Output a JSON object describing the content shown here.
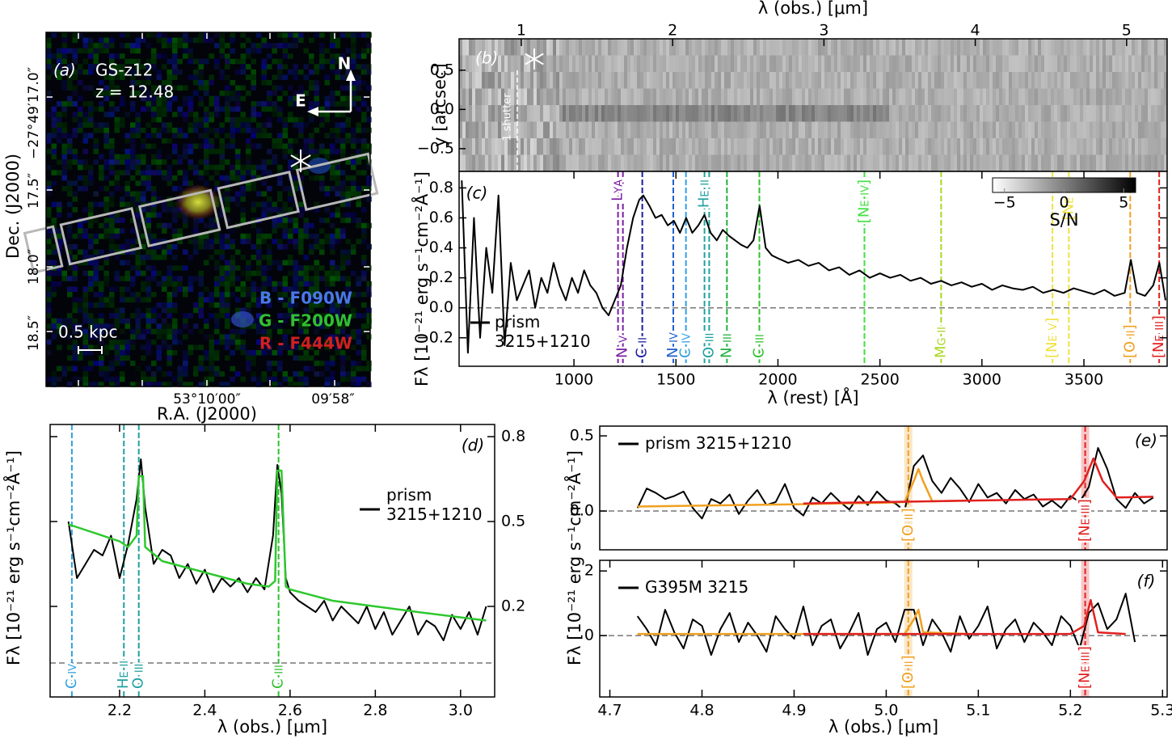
{
  "panel_a": {
    "label": "(a)",
    "name": "GS-z12",
    "redshift": "z = 12.48",
    "compass": [
      "N",
      "E"
    ],
    "filters": [
      "B - F090W",
      "G - F200W",
      "R - F444W"
    ],
    "scale": "0.5 kpc",
    "yticklabels": [
      "−27°49′17.0″",
      "17.5″",
      "18.0″",
      "18.5″"
    ],
    "xticklabels": [
      "53°10′00″",
      "09′58″"
    ],
    "ylabel": "Dec. (J2000)",
    "xlabel": "R.A. (J2000)"
  },
  "panel_b": {
    "label": "(b)",
    "ylabel": "y [arcsec]",
    "ylim": [
      -0.79,
      0.9
    ],
    "yticks": [
      0.5,
      {
        "value": 0,
        "label": "0.0"
      },
      {
        "value": -0.5,
        "label": "−0.5"
      }
    ],
    "shutter_label": "1 shutter",
    "colorbar": {
      "label": "S/N",
      "lim": [
        -6,
        6
      ],
      "ticks": [
        {
          "value": -5,
          "label": "−5"
        },
        0,
        5
      ]
    }
  },
  "chart_data": [
    {
      "type": "line",
      "label": "(c)",
      "xlabel": "λ (rest) [Å]",
      "ylabel": "Fλ [10⁻²¹ erg s⁻¹cm⁻²Å⁻¹]",
      "x2label": "λ (obs.) [μm]",
      "x2lim": [
        0.589,
        5.268
      ],
      "x2ticks": [
        1,
        2,
        3,
        4,
        5
      ],
      "xlim": [
        437,
        3908
      ],
      "xticks": [
        1000,
        1500,
        2000,
        2500,
        3000,
        3500
      ],
      "ylim": [
        -0.39,
        0.91
      ],
      "yticks": [
        {
          "value": -0.2,
          "label": "−0.2"
        },
        {
          "value": 0,
          "label": "0.0"
        },
        0.2,
        0.4,
        0.6,
        0.8
      ],
      "series": [
        {
          "name": "prism 3215+1210",
          "color": "#000000",
          "x": [
            450,
            480,
            510,
            540,
            570,
            600,
            630,
            660,
            690,
            720,
            750,
            780,
            810,
            840,
            870,
            900,
            930,
            960,
            990,
            1020,
            1050,
            1080,
            1110,
            1140,
            1170,
            1200,
            1230,
            1260,
            1290,
            1320,
            1340,
            1370,
            1400,
            1430,
            1460,
            1490,
            1520,
            1550,
            1580,
            1610,
            1640,
            1670,
            1700,
            1730,
            1760,
            1790,
            1820,
            1850,
            1880,
            1910,
            1940,
            1970,
            2000,
            2050,
            2100,
            2150,
            2200,
            2250,
            2300,
            2350,
            2400,
            2450,
            2500,
            2550,
            2600,
            2650,
            2700,
            2750,
            2800,
            2850,
            2900,
            2950,
            3000,
            3050,
            3100,
            3150,
            3200,
            3250,
            3300,
            3350,
            3400,
            3450,
            3500,
            3550,
            3600,
            3650,
            3700,
            3730,
            3760,
            3800,
            3840,
            3870,
            3900
          ],
          "values": [
            0.85,
            -0.3,
            0.6,
            -0.2,
            0.4,
            0.1,
            0.75,
            -0.25,
            0.3,
            0.05,
            0.15,
            0.25,
            0.0,
            0.2,
            0.1,
            0.3,
            0.15,
            0.05,
            0.2,
            0.1,
            0.25,
            0.15,
            0.1,
            0.0,
            -0.05,
            0.05,
            0.15,
            0.4,
            0.6,
            0.72,
            0.75,
            0.68,
            0.6,
            0.62,
            0.55,
            0.58,
            0.5,
            0.6,
            0.5,
            0.55,
            0.62,
            0.5,
            0.45,
            0.52,
            0.48,
            0.45,
            0.42,
            0.4,
            0.45,
            0.68,
            0.4,
            0.35,
            0.33,
            0.3,
            0.32,
            0.28,
            0.3,
            0.25,
            0.27,
            0.22,
            0.25,
            0.2,
            0.23,
            0.2,
            0.22,
            0.18,
            0.2,
            0.16,
            0.18,
            0.15,
            0.17,
            0.14,
            0.16,
            0.12,
            0.15,
            0.13,
            0.12,
            0.14,
            0.1,
            0.12,
            0.1,
            0.13,
            0.11,
            0.09,
            0.12,
            0.08,
            0.1,
            0.32,
            0.1,
            0.08,
            0.15,
            0.3,
            0.05
          ]
        }
      ],
      "lines": [
        {
          "label": "Lyα",
          "x": 1216,
          "color": "#7a1fa2",
          "label_at": "top"
        },
        {
          "label": "N v",
          "x": 1240,
          "color": "#7a1fa2",
          "label_at": "bottom"
        },
        {
          "label": "C ii",
          "x": 1335,
          "color": "#1a1aa0",
          "label_at": "bottom"
        },
        {
          "label": "N iv",
          "x": 1487,
          "color": "#2060d0",
          "label_at": "bottom"
        },
        {
          "label": "C iv",
          "x": 1549,
          "color": "#30a0e0",
          "label_at": "bottom"
        },
        {
          "label": "He ii",
          "x": 1640,
          "color": "#20a0a0",
          "label_at": "top"
        },
        {
          "label": "O iii",
          "x": 1663,
          "color": "#20a0a0",
          "label_at": "bottom"
        },
        {
          "label": "N iii",
          "x": 1750,
          "color": "#20b040",
          "label_at": "bottom"
        },
        {
          "label": "C iii",
          "x": 1909,
          "color": "#30c030",
          "label_at": "bottom"
        },
        {
          "label": "[Ne iv]",
          "x": 2424,
          "color": "#40e040",
          "label_at": "top"
        },
        {
          "label": "Mg ii",
          "x": 2800,
          "color": "#a8d820",
          "label_at": "bottom"
        },
        {
          "label": "[Ne v]",
          "x": 3346,
          "color": "#f0e040",
          "label_at": "bottom"
        },
        {
          "label": "[Ne v]",
          "x": 3426,
          "color": "#f0e040",
          "label_at": "top"
        },
        {
          "label": "[O ii]",
          "x": 3727,
          "color": "#f0a020",
          "label_at": "bottom"
        },
        {
          "label": "[Ne iii]",
          "x": 3869,
          "color": "#e02020",
          "label_at": "bottom"
        }
      ]
    },
    {
      "type": "line",
      "label": "(d)",
      "xlabel": "λ (obs.) [μm]",
      "ylabel": "Fλ [10⁻²¹ erg s⁻¹cm⁻²Å⁻¹]",
      "xlim": [
        2.037,
        3.08
      ],
      "xticks": [
        2.2,
        2.4,
        2.6,
        2.8,
        {
          "value": 3,
          "label": "3.0"
        }
      ],
      "ylim": [
        -0.12,
        0.843
      ],
      "yticks": [
        0.2,
        0.5,
        0.8
      ],
      "series": [
        {
          "name": "prism 3215+1210",
          "color": "#000000",
          "x": [
            2.08,
            2.1,
            2.12,
            2.14,
            2.16,
            2.18,
            2.2,
            2.22,
            2.24,
            2.25,
            2.26,
            2.28,
            2.3,
            2.32,
            2.34,
            2.36,
            2.38,
            2.4,
            2.42,
            2.44,
            2.46,
            2.48,
            2.5,
            2.52,
            2.54,
            2.56,
            2.57,
            2.58,
            2.59,
            2.6,
            2.62,
            2.64,
            2.66,
            2.68,
            2.7,
            2.72,
            2.74,
            2.76,
            2.78,
            2.8,
            2.82,
            2.84,
            2.86,
            2.88,
            2.9,
            2.92,
            2.94,
            2.96,
            2.98,
            3.0,
            3.02,
            3.04,
            3.06
          ],
          "values": [
            0.5,
            0.3,
            0.35,
            0.4,
            0.38,
            0.45,
            0.3,
            0.42,
            0.58,
            0.72,
            0.55,
            0.35,
            0.4,
            0.38,
            0.3,
            0.35,
            0.28,
            0.33,
            0.25,
            0.3,
            0.27,
            0.3,
            0.25,
            0.3,
            0.26,
            0.45,
            0.7,
            0.6,
            0.3,
            0.25,
            0.22,
            0.2,
            0.18,
            0.22,
            0.15,
            0.2,
            0.17,
            0.14,
            0.2,
            0.12,
            0.18,
            0.1,
            0.15,
            0.2,
            0.1,
            0.15,
            0.13,
            0.08,
            0.17,
            0.12,
            0.18,
            0.1,
            0.2
          ]
        },
        {
          "color": "#2ec82e",
          "x": [
            2.08,
            2.2,
            2.22,
            2.24,
            2.245,
            2.255,
            2.26,
            2.3,
            2.4,
            2.5,
            2.55,
            2.565,
            2.57,
            2.58,
            2.59,
            2.6,
            2.7,
            2.8,
            2.9,
            3.06
          ],
          "values": [
            0.49,
            0.43,
            0.41,
            0.45,
            0.66,
            0.66,
            0.41,
            0.36,
            0.32,
            0.28,
            0.27,
            0.29,
            0.68,
            0.68,
            0.27,
            0.26,
            0.22,
            0.2,
            0.18,
            0.15
          ]
        }
      ],
      "lines": [
        {
          "label": "C iv",
          "x": 2.088,
          "color": "#30a0e0",
          "label_at": "bottom"
        },
        {
          "label": "He ii",
          "x": 2.21,
          "color": "#20a0a0",
          "label_at": "bottom"
        },
        {
          "label": "O iii",
          "x": 2.245,
          "color": "#20a0a0",
          "label_at": "bottom"
        },
        {
          "label": "C iii",
          "x": 2.573,
          "color": "#30c030",
          "label_at": "bottom"
        }
      ]
    },
    {
      "type": "line",
      "label": "(e)",
      "xlim": [
        4.689,
        5.305
      ],
      "ylim": [
        -0.258,
        0.565
      ],
      "yticks": [
        {
          "value": 0,
          "label": "0.0"
        },
        0.5
      ],
      "series": [
        {
          "name": "prism 3215+1210",
          "color": "#000000",
          "x": [
            4.73,
            4.74,
            4.75,
            4.76,
            4.77,
            4.78,
            4.79,
            4.8,
            4.81,
            4.82,
            4.83,
            4.84,
            4.85,
            4.86,
            4.87,
            4.88,
            4.89,
            4.9,
            4.91,
            4.92,
            4.93,
            4.94,
            4.95,
            4.96,
            4.97,
            4.98,
            4.99,
            5.0,
            5.01,
            5.02,
            5.03,
            5.04,
            5.05,
            5.06,
            5.07,
            5.08,
            5.09,
            5.1,
            5.11,
            5.12,
            5.13,
            5.14,
            5.15,
            5.16,
            5.17,
            5.18,
            5.19,
            5.2,
            5.21,
            5.22,
            5.23,
            5.24,
            5.25,
            5.26,
            5.27,
            5.28,
            5.29
          ],
          "values": [
            0.02,
            0.15,
            0.12,
            0.08,
            0.1,
            0.13,
            0.02,
            -0.05,
            0.08,
            0.05,
            0.11,
            -0.02,
            0.07,
            0.14,
            0.04,
            0.06,
            0.18,
            0.02,
            -0.03,
            0.09,
            0.05,
            0.12,
            0.06,
            0.01,
            0.1,
            0.04,
            0.13,
            0.07,
            0.05,
            0.0,
            0.3,
            0.37,
            0.2,
            0.12,
            0.22,
            0.15,
            0.06,
            0.18,
            0.09,
            0.12,
            0.05,
            0.14,
            0.08,
            0.11,
            0.03,
            0.07,
            0.02,
            0.1,
            0.06,
            0.16,
            0.42,
            0.28,
            0.08,
            0.02,
            0.12,
            0.05,
            0.09
          ]
        },
        {
          "color": "#f0a020",
          "x": [
            4.73,
            4.9,
            5.0,
            5.02,
            5.03,
            5.035,
            5.04,
            5.05,
            5.09
          ],
          "values": [
            0.03,
            0.045,
            0.055,
            0.06,
            0.2,
            0.28,
            0.2,
            0.065,
            0.07
          ]
        },
        {
          "color": "#e02020",
          "x": [
            4.91,
            5.0,
            5.1,
            5.2,
            5.215,
            5.225,
            5.235,
            5.25,
            5.29
          ],
          "values": [
            0.05,
            0.06,
            0.07,
            0.08,
            0.2,
            0.35,
            0.2,
            0.09,
            0.095
          ]
        }
      ],
      "lines": [
        {
          "label": "[O ii]",
          "x": 5.024,
          "color": "#f0a020",
          "label_at": "bottom"
        },
        {
          "label": "[Ne iii]",
          "x": 5.216,
          "color": "#e02020",
          "label_at": "bottom"
        }
      ]
    },
    {
      "type": "line",
      "label": "(f)",
      "xlabel": "λ (obs.) [μm]",
      "ylabel": "Fλ [10⁻²¹ erg s⁻¹cm⁻²Å⁻¹]",
      "xlim": [
        4.689,
        5.305
      ],
      "xticks": [
        4.7,
        4.8,
        4.9,
        {
          "value": 5,
          "label": "5.0"
        },
        5.1,
        5.2,
        5.3
      ],
      "ylim": [
        -1.9,
        2.33
      ],
      "yticks": [
        0,
        2
      ],
      "series": [
        {
          "name": "G395M 3215",
          "color": "#000000",
          "x": [
            4.73,
            4.74,
            4.75,
            4.76,
            4.77,
            4.78,
            4.79,
            4.8,
            4.81,
            4.82,
            4.83,
            4.84,
            4.85,
            4.86,
            4.87,
            4.88,
            4.89,
            4.9,
            4.91,
            4.92,
            4.93,
            4.94,
            4.95,
            4.96,
            4.97,
            4.98,
            4.99,
            5.0,
            5.01,
            5.02,
            5.03,
            5.04,
            5.05,
            5.06,
            5.07,
            5.08,
            5.09,
            5.1,
            5.11,
            5.12,
            5.13,
            5.14,
            5.15,
            5.16,
            5.17,
            5.18,
            5.19,
            5.2,
            5.21,
            5.22,
            5.23,
            5.24,
            5.25,
            5.26,
            5.27
          ],
          "values": [
            0.6,
            0.2,
            -0.3,
            0.8,
            0.1,
            -0.4,
            0.5,
            0.3,
            -0.6,
            0.2,
            0.7,
            -0.2,
            0.4,
            0.0,
            -0.5,
            0.6,
            0.2,
            -0.1,
            0.9,
            -0.3,
            0.3,
            0.5,
            -0.4,
            0.1,
            0.7,
            -0.6,
            0.2,
            0.4,
            -0.2,
            0.8,
            0.8,
            -0.3,
            0.5,
            0.1,
            -0.5,
            0.6,
            -0.1,
            0.3,
            0.9,
            -0.4,
            0.2,
            0.5,
            -0.2,
            0.4,
            0.1,
            -0.3,
            0.6,
            0.3,
            -0.4,
            0.7,
            1.0,
            0.2,
            0.5,
            1.3,
            -0.2
          ]
        },
        {
          "color": "#f0a020",
          "x": [
            4.73,
            4.9,
            5.0,
            5.02,
            5.03,
            5.035,
            5.04,
            5.09
          ],
          "values": [
            0.05,
            0.05,
            0.05,
            0.05,
            0.5,
            0.8,
            0.1,
            0.05
          ]
        },
        {
          "color": "#e02020",
          "x": [
            4.91,
            5.1,
            5.2,
            5.215,
            5.222,
            5.23,
            5.26
          ],
          "values": [
            0.05,
            0.05,
            0.05,
            0.3,
            1.1,
            0.1,
            0.05
          ]
        }
      ],
      "lines": [
        {
          "label": "[O ii]",
          "x": 5.024,
          "color": "#f0a020",
          "label_at": "bottom"
        },
        {
          "label": "[Ne iii]",
          "x": 5.216,
          "color": "#e02020",
          "label_at": "bottom"
        }
      ]
    }
  ]
}
